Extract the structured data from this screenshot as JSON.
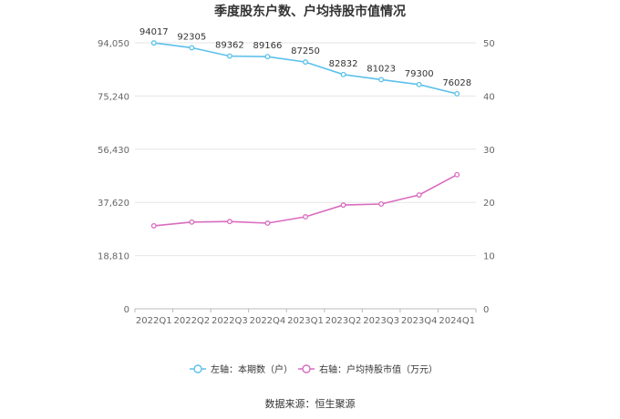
{
  "chart_data": {
    "type": "line",
    "title": "季度股东户数、户均持股市值情况",
    "categories": [
      "2022Q1",
      "2022Q2",
      "2022Q3",
      "2022Q4",
      "2023Q1",
      "2023Q2",
      "2023Q3",
      "2023Q4",
      "2024Q1"
    ],
    "left_axis": {
      "ticks": [
        "0",
        "18,810",
        "37,620",
        "56,430",
        "75,240",
        "94,050"
      ],
      "ylim": [
        0,
        94050
      ]
    },
    "right_axis": {
      "ticks": [
        "0",
        "10",
        "20",
        "30",
        "40",
        "50"
      ],
      "ylim": [
        0,
        50
      ]
    },
    "series": [
      {
        "name": "左轴：本期数（户）",
        "axis": "left",
        "color": "#5bc0eb",
        "values": [
          94017,
          92305,
          89362,
          89166,
          87250,
          82832,
          81023,
          79300,
          76028
        ],
        "labels": [
          "94017",
          "92305",
          "89362",
          "89166",
          "87250",
          "82832",
          "81023",
          "79300",
          "76028"
        ]
      },
      {
        "name": "右轴：户均持股市值（万元）",
        "axis": "right",
        "color": "#d96bbf",
        "values": [
          15.6,
          16.3,
          16.4,
          16.1,
          17.3,
          19.5,
          19.7,
          21.4,
          25.2
        ]
      }
    ],
    "grid": true,
    "legend_position": "bottom"
  },
  "source": "数据来源：恒生聚源"
}
